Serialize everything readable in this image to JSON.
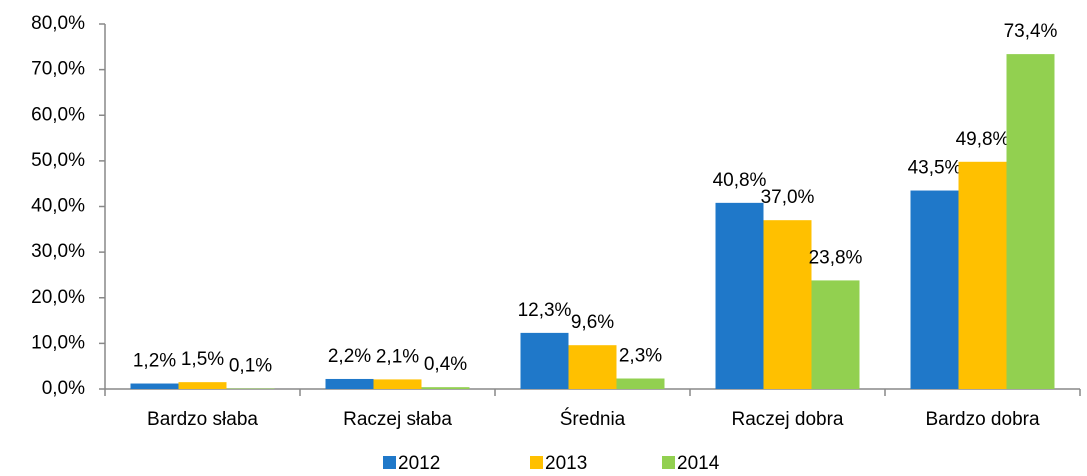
{
  "chart_data": {
    "type": "bar",
    "categories": [
      "Bardzo słaba",
      "Raczej słaba",
      "Średnia",
      "Raczej dobra",
      "Bardzo dobra"
    ],
    "series": [
      {
        "name": "2012",
        "color": "#1f78c9",
        "values": [
          1.2,
          2.2,
          12.3,
          40.8,
          43.5
        ],
        "value_labels": [
          "1,2%",
          "2,2%",
          "12,3%",
          "40,8%",
          "43,5%"
        ]
      },
      {
        "name": "2013",
        "color": "#ffc000",
        "values": [
          1.5,
          2.1,
          9.6,
          37.0,
          49.8
        ],
        "value_labels": [
          "1,5%",
          "2,1%",
          "9,6%",
          "37,0%",
          "49,8%"
        ]
      },
      {
        "name": "2014",
        "color": "#92d050",
        "values": [
          0.1,
          0.4,
          2.3,
          23.8,
          73.4
        ],
        "value_labels": [
          "0,1%",
          "0,4%",
          "2,3%",
          "23,8%",
          "73,4%"
        ]
      }
    ],
    "ylim": [
      0,
      80
    ],
    "yticks": [
      {
        "value": 0,
        "label": "0,0%"
      },
      {
        "value": 10,
        "label": "10,0%"
      },
      {
        "value": 20,
        "label": "20,0%"
      },
      {
        "value": 30,
        "label": "30,0%"
      },
      {
        "value": 40,
        "label": "40,0%"
      },
      {
        "value": 50,
        "label": "50,0%"
      },
      {
        "value": 60,
        "label": "60,0%"
      },
      {
        "value": 70,
        "label": "70,0%"
      },
      {
        "value": 80,
        "label": "80,0%"
      }
    ],
    "grid": false,
    "legend": "bottom"
  }
}
